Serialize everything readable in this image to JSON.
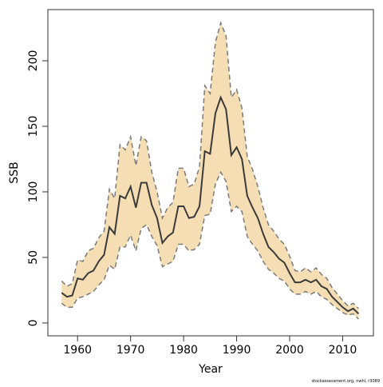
{
  "chart_data": {
    "type": "band-line",
    "xlabel": "Year",
    "ylabel": "SSB",
    "footnote": "stockassessment.org, nwhl, r3089",
    "x": [
      1957,
      1958,
      1959,
      1960,
      1961,
      1962,
      1963,
      1964,
      1965,
      1966,
      1967,
      1968,
      1969,
      1970,
      1971,
      1972,
      1973,
      1974,
      1975,
      1976,
      1977,
      1978,
      1979,
      1980,
      1981,
      1982,
      1983,
      1984,
      1985,
      1986,
      1987,
      1988,
      1989,
      1990,
      1991,
      1992,
      1993,
      1994,
      1995,
      1996,
      1997,
      1998,
      1999,
      2000,
      2001,
      2002,
      2003,
      2004,
      2005,
      2006,
      2007,
      2008,
      2009,
      2010,
      2011,
      2012,
      2013
    ],
    "series": [
      {
        "color": "#3a3a3a",
        "band_color": "#f5deb3",
        "bound_color": "#7a7a7a",
        "values": [
          23,
          20,
          21,
          34,
          33,
          38,
          40,
          47,
          52,
          73,
          68,
          97,
          95,
          104,
          88,
          107,
          107,
          90,
          80,
          61,
          66,
          69,
          89,
          89,
          80,
          81,
          89,
          131,
          129,
          160,
          172,
          163,
          128,
          134,
          125,
          97,
          88,
          80,
          68,
          58,
          54,
          49,
          46,
          38,
          31,
          31,
          33,
          31,
          33,
          28,
          26,
          20,
          16,
          12,
          9,
          11,
          7
        ],
        "upper": [
          32,
          28,
          30,
          48,
          47,
          55,
          57,
          65,
          70,
          102,
          95,
          136,
          132,
          142,
          120,
          142,
          139,
          115,
          100,
          80,
          88,
          92,
          118,
          118,
          104,
          106,
          119,
          181,
          175,
          214,
          229,
          219,
          172,
          178,
          164,
          127,
          117,
          104,
          88,
          75,
          70,
          64,
          60,
          51,
          40,
          39,
          42,
          39,
          42,
          37,
          34,
          27,
          22,
          17,
          13,
          15,
          11
        ],
        "lower": [
          15,
          12,
          12,
          19,
          20,
          22,
          24,
          29,
          33,
          44,
          41,
          58,
          58,
          67,
          55,
          72,
          75,
          66,
          59,
          43,
          45,
          47,
          60,
          60,
          55,
          56,
          60,
          82,
          83,
          106,
          115,
          108,
          85,
          89,
          85,
          66,
          60,
          55,
          47,
          41,
          38,
          34,
          32,
          26,
          22,
          22,
          24,
          22,
          24,
          20,
          18,
          14,
          11,
          8,
          6,
          7,
          3
        ]
      }
    ],
    "xlim": [
      1954.4,
      2015.8
    ],
    "xticks": [
      1960,
      1970,
      1980,
      1990,
      2000,
      2010
    ],
    "ylim": [
      -9.8,
      239
    ],
    "yticks": [
      0,
      50,
      100,
      150,
      200
    ]
  }
}
